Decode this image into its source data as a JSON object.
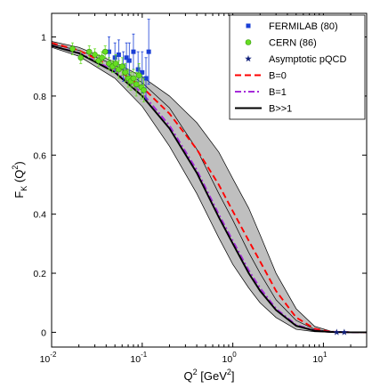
{
  "chart_data": {
    "type": "line",
    "title": "",
    "xlabel": {
      "base": "Q",
      "sup1": "2",
      "unit_open": " [GeV",
      "sup2": "2",
      "unit_close": "]"
    },
    "ylabel": {
      "prefix": "F",
      "sub": "K",
      "mid": " (Q",
      "sup": "2",
      "suffix": ")"
    },
    "x_scale": "log",
    "xlim": [
      0.01,
      30
    ],
    "ylim": [
      -0.05,
      1.08
    ],
    "grid": false,
    "legend_position": "top-right",
    "x_ticks": [
      {
        "value": 0.01,
        "base": "10",
        "exp": "-2"
      },
      {
        "value": 0.1,
        "base": "10",
        "exp": "-1"
      },
      {
        "value": 1,
        "base": "10",
        "exp": "0"
      },
      {
        "value": 10,
        "base": "10",
        "exp": "1"
      }
    ],
    "y_ticks": [
      {
        "value": 0,
        "label": "0"
      },
      {
        "value": 0.2,
        "label": "0.2"
      },
      {
        "value": 0.4,
        "label": "0.4"
      },
      {
        "value": 0.6,
        "label": "0.6"
      },
      {
        "value": 0.8,
        "label": "0.8"
      },
      {
        "value": 1,
        "label": "1"
      }
    ],
    "bands": [
      {
        "of_series": "B=0",
        "color": "#bfbfbf",
        "x": [
          0.01,
          0.02,
          0.05,
          0.1,
          0.2,
          0.4,
          0.7,
          1,
          1.5,
          2,
          3,
          5,
          8,
          12,
          20,
          30
        ],
        "upper": [
          0.985,
          0.965,
          0.915,
          0.865,
          0.8,
          0.71,
          0.61,
          0.52,
          0.42,
          0.33,
          0.2,
          0.08,
          0.02,
          0.004,
          0.001,
          0
        ],
        "lower": [
          0.975,
          0.945,
          0.875,
          0.79,
          0.67,
          0.53,
          0.38,
          0.29,
          0.2,
          0.14,
          0.07,
          0.02,
          0.004,
          0.001,
          0,
          0
        ]
      },
      {
        "of_series": "B>>1",
        "color": "#bfbfbf",
        "x": [
          0.01,
          0.02,
          0.05,
          0.1,
          0.2,
          0.4,
          0.7,
          1,
          1.5,
          2,
          3,
          5,
          8,
          12,
          20,
          30
        ],
        "upper": [
          0.975,
          0.955,
          0.905,
          0.845,
          0.76,
          0.62,
          0.47,
          0.38,
          0.27,
          0.2,
          0.11,
          0.04,
          0.01,
          0.002,
          0,
          0
        ],
        "lower": [
          0.965,
          0.935,
          0.86,
          0.765,
          0.63,
          0.47,
          0.32,
          0.23,
          0.15,
          0.1,
          0.05,
          0.01,
          0.002,
          0,
          0,
          0
        ]
      }
    ],
    "series": [
      {
        "name": "B=0",
        "style": "dashed",
        "color": "#ff0000",
        "x": [
          0.01,
          0.02,
          0.05,
          0.1,
          0.2,
          0.4,
          0.7,
          1,
          1.5,
          2,
          3,
          5,
          8,
          12,
          20,
          30
        ],
        "y": [
          0.98,
          0.955,
          0.895,
          0.83,
          0.74,
          0.62,
          0.5,
          0.41,
          0.31,
          0.24,
          0.14,
          0.05,
          0.012,
          0.002,
          0,
          0
        ]
      },
      {
        "name": "B=1",
        "style": "dashdot",
        "color": "#a52ad9",
        "x": [
          0.01,
          0.02,
          0.05,
          0.1,
          0.2,
          0.4,
          0.7,
          1,
          1.5,
          2,
          3,
          5,
          8,
          12,
          20,
          30
        ],
        "y": [
          0.97,
          0.947,
          0.885,
          0.81,
          0.7,
          0.55,
          0.4,
          0.31,
          0.21,
          0.15,
          0.08,
          0.025,
          0.006,
          0.001,
          0,
          0
        ]
      },
      {
        "name": "B>>1",
        "style": "solid",
        "color": "#000000",
        "x": [
          0.01,
          0.02,
          0.05,
          0.1,
          0.2,
          0.4,
          0.7,
          1,
          1.5,
          2,
          3,
          5,
          8,
          12,
          20,
          30
        ],
        "y": [
          0.97,
          0.945,
          0.88,
          0.8,
          0.69,
          0.54,
          0.39,
          0.3,
          0.2,
          0.14,
          0.075,
          0.022,
          0.005,
          0.001,
          0,
          0
        ]
      }
    ],
    "points": [
      {
        "name": "FERMILAB (80)",
        "marker": "square",
        "color": "#1a3fd6",
        "x": [
          0.043,
          0.05,
          0.055,
          0.062,
          0.067,
          0.072,
          0.08,
          0.09,
          0.1,
          0.11,
          0.118
        ],
        "y": [
          0.95,
          0.93,
          0.94,
          0.9,
          0.93,
          0.92,
          0.95,
          0.89,
          0.88,
          0.86,
          0.95
        ],
        "err": [
          0.05,
          0.05,
          0.05,
          0.05,
          0.05,
          0.06,
          0.06,
          0.06,
          0.07,
          0.07,
          0.11
        ]
      },
      {
        "name": "CERN (86)",
        "marker": "circle",
        "color": "#66dd22",
        "x": [
          0.017,
          0.021,
          0.026,
          0.03,
          0.033,
          0.036,
          0.039,
          0.043,
          0.047,
          0.051,
          0.055,
          0.06,
          0.065,
          0.07,
          0.075,
          0.08,
          0.086,
          0.092,
          0.098,
          0.104
        ],
        "y": [
          0.96,
          0.93,
          0.95,
          0.94,
          0.92,
          0.93,
          0.95,
          0.91,
          0.9,
          0.91,
          0.89,
          0.9,
          0.88,
          0.86,
          0.85,
          0.86,
          0.84,
          0.87,
          0.83,
          0.82
        ],
        "err": [
          0.02,
          0.02,
          0.02,
          0.02,
          0.02,
          0.02,
          0.02,
          0.02,
          0.02,
          0.03,
          0.03,
          0.03,
          0.03,
          0.03,
          0.03,
          0.03,
          0.04,
          0.04,
          0.04,
          0.04
        ]
      },
      {
        "name": "Asymptotic pQCD",
        "marker": "star",
        "color": "#10207a",
        "x": [
          14,
          17
        ],
        "y": [
          0,
          0
        ]
      }
    ],
    "legend": [
      {
        "label": "FERMILAB (80)",
        "marker": "square",
        "color": "#1a3fd6"
      },
      {
        "label": "CERN (86)",
        "marker": "circle",
        "color": "#66dd22"
      },
      {
        "label": "Asymptotic pQCD",
        "marker": "star",
        "color": "#10207a"
      },
      {
        "label": "B=0",
        "line": "dashed",
        "color": "#ff0000"
      },
      {
        "label": "B=1",
        "line": "dashdot",
        "color": "#a52ad9"
      },
      {
        "label": "B>>1",
        "line": "solid",
        "color": "#000000"
      }
    ]
  }
}
